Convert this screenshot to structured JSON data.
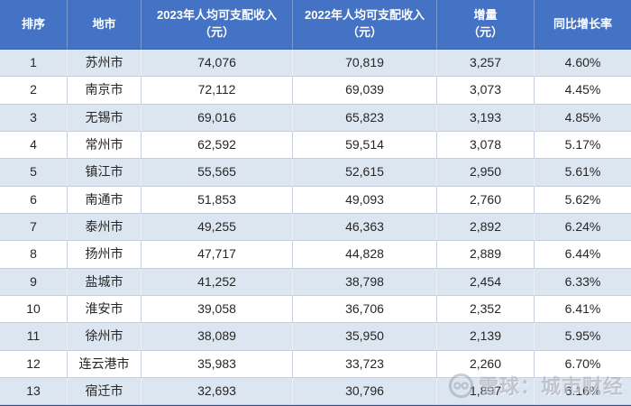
{
  "chart_data": {
    "type": "table",
    "columns": [
      "排序",
      "地市",
      "2023年人均可支配收入\n（元）",
      "2022年人均可支配收入\n（元）",
      "增量\n（元）",
      "同比增长率"
    ],
    "rows": [
      [
        "1",
        "苏州市",
        "74,076",
        "70,819",
        "3,257",
        "4.60%"
      ],
      [
        "2",
        "南京市",
        "72,112",
        "69,039",
        "3,073",
        "4.45%"
      ],
      [
        "3",
        "无锡市",
        "69,016",
        "65,823",
        "3,193",
        "4.85%"
      ],
      [
        "4",
        "常州市",
        "62,592",
        "59,514",
        "3,078",
        "5.17%"
      ],
      [
        "5",
        "镇江市",
        "55,565",
        "52,615",
        "2,950",
        "5.61%"
      ],
      [
        "6",
        "南通市",
        "51,853",
        "49,093",
        "2,760",
        "5.62%"
      ],
      [
        "7",
        "泰州市",
        "49,255",
        "46,363",
        "2,892",
        "6.24%"
      ],
      [
        "8",
        "扬州市",
        "47,717",
        "44,828",
        "2,889",
        "6.44%"
      ],
      [
        "9",
        "盐城市",
        "41,252",
        "38,798",
        "2,454",
        "6.33%"
      ],
      [
        "10",
        "淮安市",
        "39,058",
        "36,706",
        "2,352",
        "6.41%"
      ],
      [
        "11",
        "徐州市",
        "38,089",
        "35,950",
        "2,139",
        "5.95%"
      ],
      [
        "12",
        "连云港市",
        "35,983",
        "33,723",
        "2,260",
        "6.70%"
      ],
      [
        "13",
        "宿迁市",
        "32,693",
        "30,796",
        "1,897",
        "6.16%"
      ]
    ]
  },
  "watermark": {
    "icon": "xueqiu-snowball-icon",
    "text": "雪球：城市财经"
  },
  "colors": {
    "header_bg": "#4472C4",
    "header_text": "#FFFFFF",
    "stripe_row": "#DCE6F1",
    "white_row": "#FFFFFF",
    "cell_text": "#262626",
    "bottom_border": "#2E5597"
  }
}
